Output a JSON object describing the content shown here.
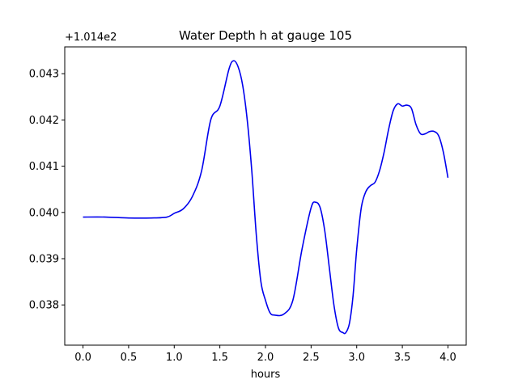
{
  "chart_data": {
    "type": "line",
    "title": "Water Depth h at gauge 105",
    "xlabel": "hours",
    "ylabel": "",
    "y_offset_label": "+1.014e2",
    "xlim": [
      -0.2,
      4.2
    ],
    "ylim": [
      0.03713,
      0.04358
    ],
    "x_ticks": [
      0.0,
      0.5,
      1.0,
      1.5,
      2.0,
      2.5,
      3.0,
      3.5,
      4.0
    ],
    "x_tick_labels": [
      "0.0",
      "0.5",
      "1.0",
      "1.5",
      "2.0",
      "2.5",
      "3.0",
      "3.5",
      "4.0"
    ],
    "y_ticks": [
      0.038,
      0.039,
      0.04,
      0.041,
      0.042,
      0.043
    ],
    "y_tick_labels": [
      "0.038",
      "0.039",
      "0.040",
      "0.041",
      "0.042",
      "0.043"
    ],
    "grid": false,
    "legend": "none",
    "line_color": "#0000ee",
    "series": [
      {
        "x": [
          0.0,
          0.25,
          0.5,
          0.75,
          0.92,
          1.0,
          1.1,
          1.2,
          1.3,
          1.4,
          1.5,
          1.6,
          1.65,
          1.7,
          1.75,
          1.8,
          1.85,
          1.9,
          1.95,
          2.0,
          2.05,
          2.1,
          2.2,
          2.3,
          2.4,
          2.5,
          2.55,
          2.6,
          2.65,
          2.7,
          2.75,
          2.8,
          2.85,
          2.88,
          2.92,
          2.96,
          3.0,
          3.05,
          3.1,
          3.15,
          3.2,
          3.25,
          3.3,
          3.35,
          3.4,
          3.45,
          3.5,
          3.55,
          3.6,
          3.65,
          3.7,
          3.75,
          3.8,
          3.85,
          3.9,
          3.95,
          4.0
        ],
        "y": [
          0.0399,
          0.0399,
          0.03988,
          0.03988,
          0.0399,
          0.03998,
          0.04008,
          0.04035,
          0.0409,
          0.042,
          0.0423,
          0.0431,
          0.04328,
          0.04315,
          0.04275,
          0.042,
          0.0409,
          0.0395,
          0.0385,
          0.0381,
          0.03783,
          0.03778,
          0.0378,
          0.0381,
          0.0392,
          0.0401,
          0.04022,
          0.0401,
          0.0396,
          0.0388,
          0.038,
          0.0375,
          0.0374,
          0.0374,
          0.0376,
          0.0382,
          0.0392,
          0.0401,
          0.04045,
          0.04058,
          0.04065,
          0.0409,
          0.0413,
          0.0418,
          0.0422,
          0.04235,
          0.0423,
          0.04232,
          0.04225,
          0.0419,
          0.0417,
          0.0417,
          0.04175,
          0.04175,
          0.04165,
          0.0413,
          0.04075
        ]
      }
    ]
  }
}
